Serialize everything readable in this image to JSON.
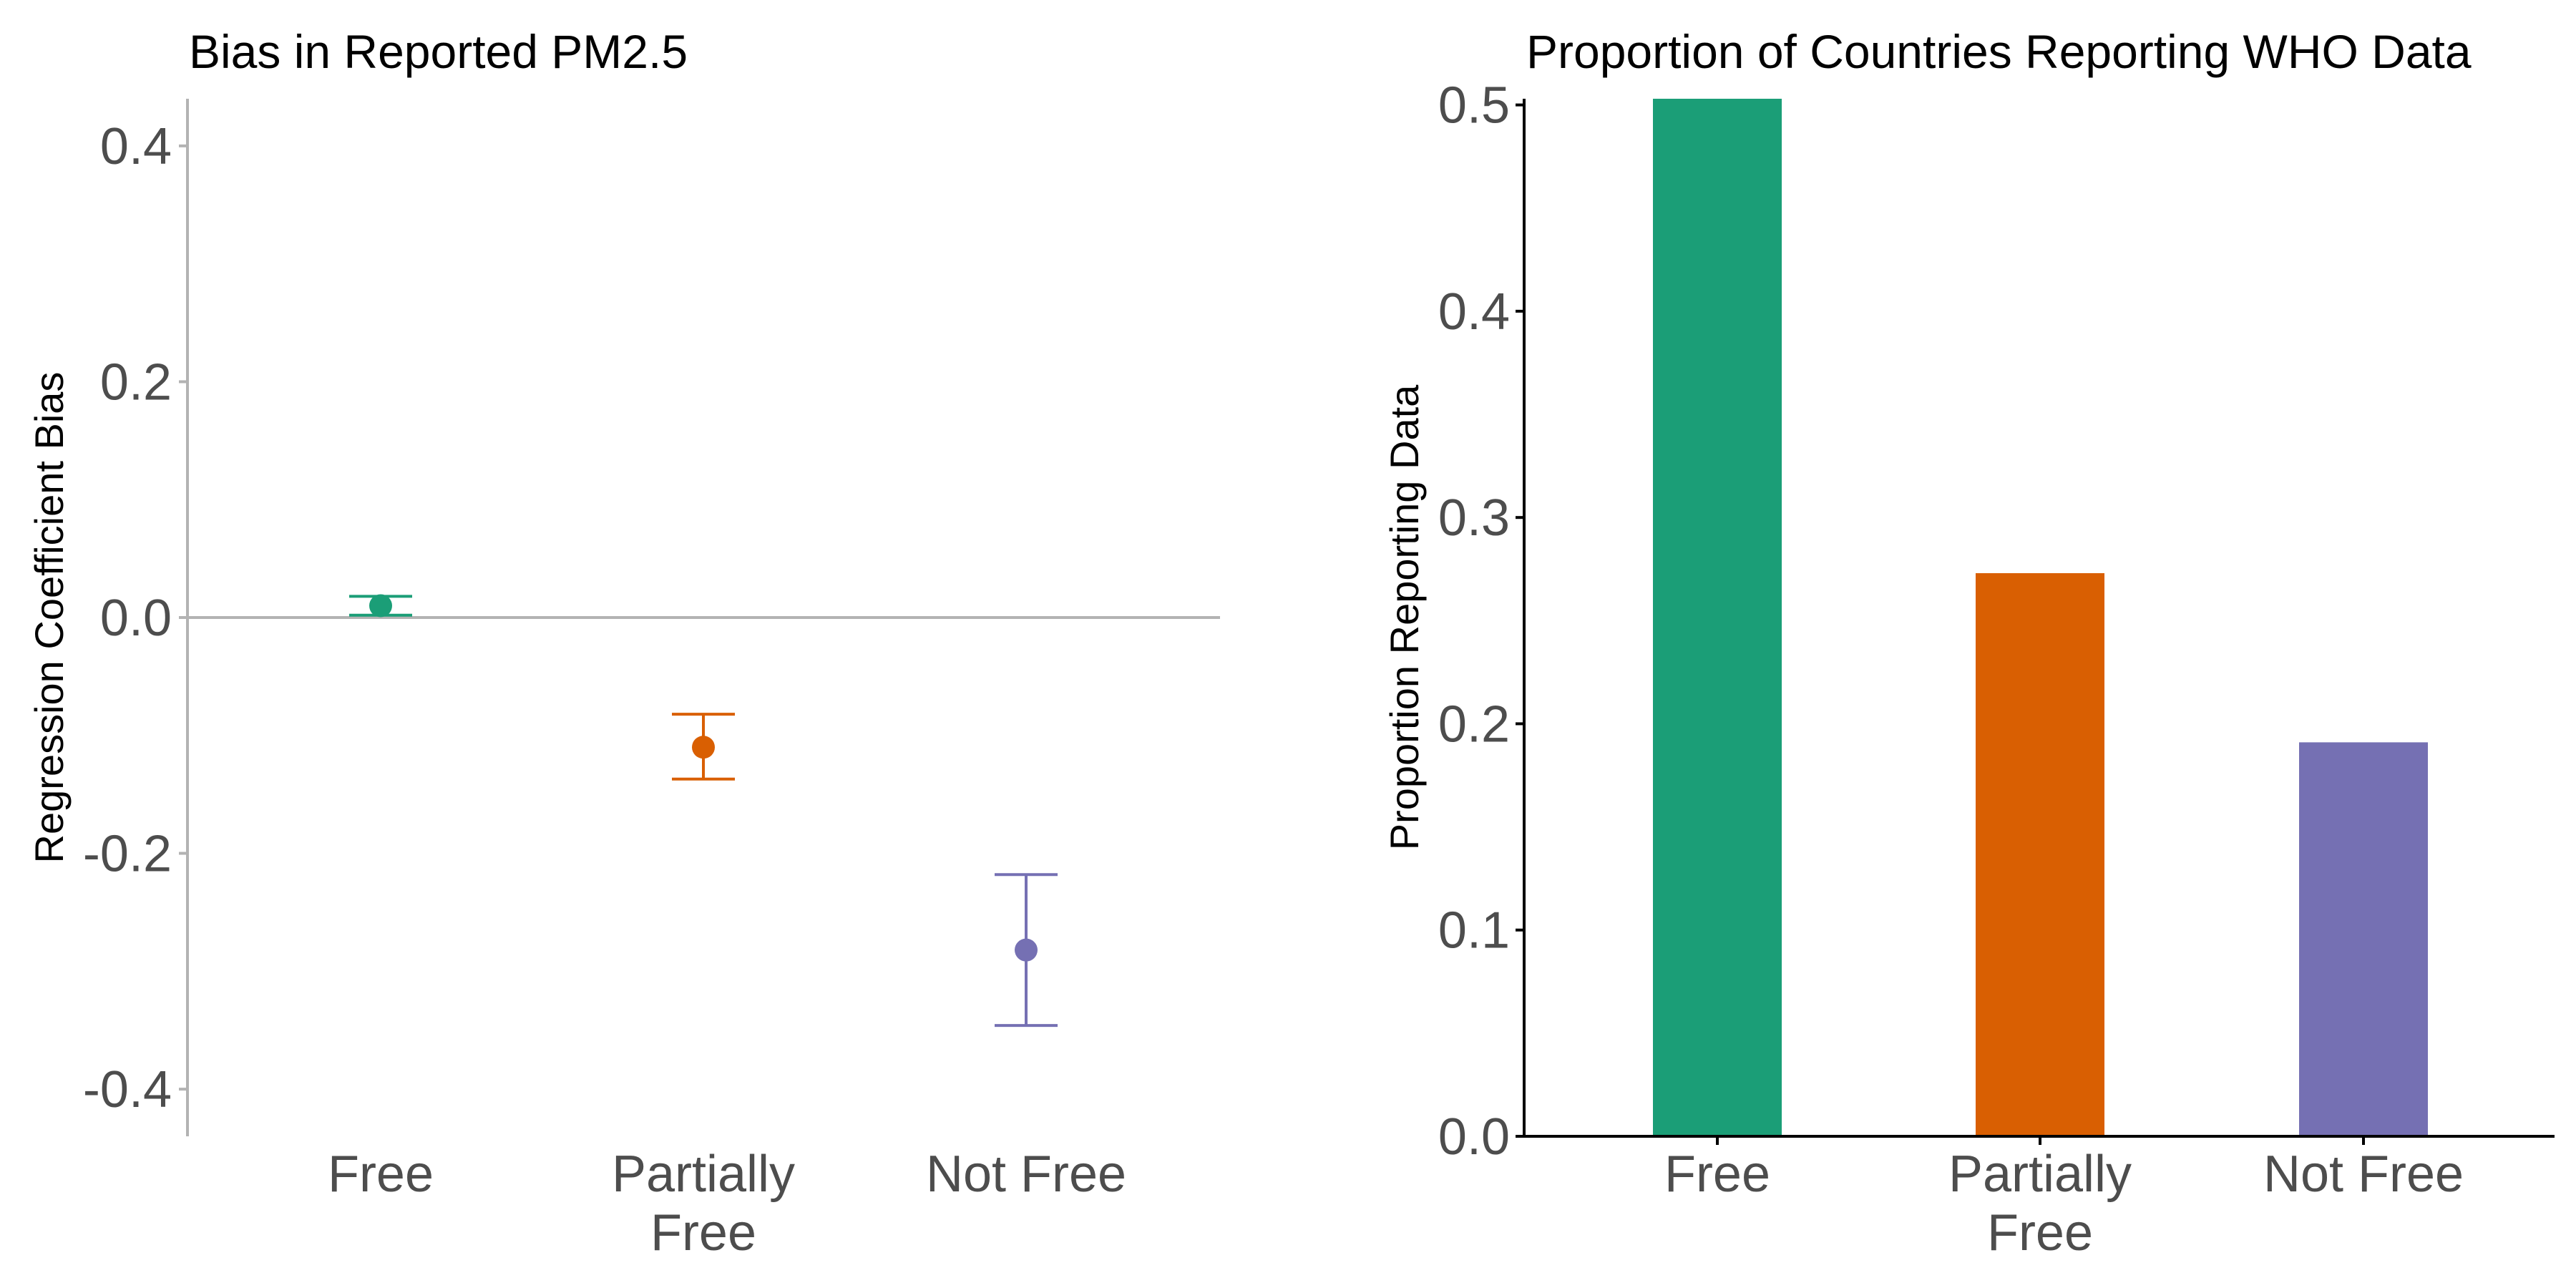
{
  "chart_data": [
    {
      "type": "scatter",
      "title": "Bias in Reported PM2.5",
      "xlabel": "",
      "ylabel": "Regression Coefficient Bias",
      "categories": [
        "Free",
        "Partially\nFree",
        "Not Free"
      ],
      "y_ticks": [
        "0.4",
        "0.2",
        "0.0",
        "-0.2",
        "-0.4"
      ],
      "y_tick_values": [
        0.4,
        0.2,
        0.0,
        -0.2,
        -0.4
      ],
      "ylim": [
        -0.44,
        0.44
      ],
      "reference_line": 0.0,
      "points": [
        {
          "category": "Free",
          "value": 0.01,
          "lower": 0.002,
          "upper": 0.018
        },
        {
          "category": "Partially\nFree",
          "value": -0.11,
          "lower": -0.137,
          "upper": -0.082
        },
        {
          "category": "Not Free",
          "value": -0.282,
          "lower": -0.346,
          "upper": -0.218
        }
      ],
      "colors": [
        "#1b9e77",
        "#d95f02",
        "#7570b3"
      ],
      "grid": false
    },
    {
      "type": "bar",
      "title": "Proportion of Countries Reporting WHO Data",
      "xlabel": "",
      "ylabel": "Proportion Reporting Data",
      "categories": [
        "Free",
        "Partially\nFree",
        "Not Free"
      ],
      "values": [
        0.503,
        0.273,
        0.191
      ],
      "y_ticks": [
        "0.5",
        "0.4",
        "0.3",
        "0.2",
        "0.1",
        "0.0"
      ],
      "y_tick_values": [
        0.5,
        0.4,
        0.3,
        0.2,
        0.1,
        0.0
      ],
      "ylim": [
        0.0,
        0.503
      ],
      "colors": [
        "#1b9e77",
        "#d95f02",
        "#7570b3"
      ],
      "grid": false
    }
  ]
}
